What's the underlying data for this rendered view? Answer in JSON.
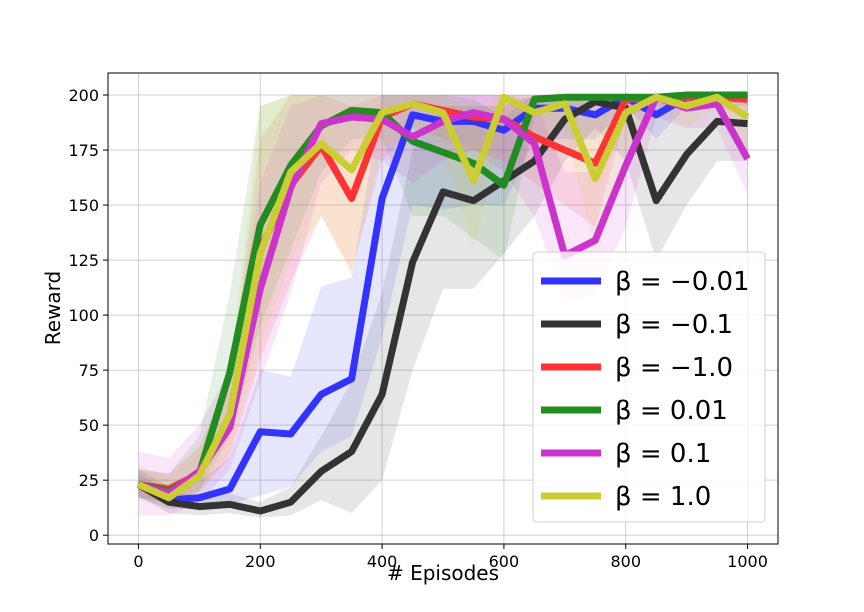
{
  "chart_data": {
    "type": "line",
    "title": "",
    "xlabel": "# Episodes",
    "ylabel": "Reward",
    "xlim": [
      -50,
      1050
    ],
    "ylim": [
      -4,
      210
    ],
    "grid": true,
    "legend_position": "lower-right",
    "x_ticks": [
      0,
      200,
      400,
      600,
      800,
      1000
    ],
    "y_ticks": [
      0,
      25,
      50,
      75,
      100,
      125,
      150,
      175,
      200
    ],
    "x": [
      0,
      50,
      100,
      150,
      200,
      250,
      300,
      350,
      400,
      450,
      500,
      550,
      600,
      650,
      700,
      750,
      800,
      850,
      900,
      950,
      1000
    ],
    "series": [
      {
        "name": "β = −0.01",
        "legend_text": "β = −0.01",
        "color": "#3333ff",
        "values": [
          23,
          16,
          17,
          21,
          47,
          46,
          64,
          71,
          153,
          191,
          188,
          188,
          184,
          194,
          194,
          191,
          199,
          191,
          199,
          199,
          199
        ],
        "lower": [
          17,
          12,
          12,
          14,
          18,
          22,
          38,
          45,
          90,
          150,
          148,
          150,
          150,
          180,
          180,
          180,
          195,
          180,
          195,
          195,
          195
        ],
        "upper": [
          30,
          22,
          25,
          35,
          75,
          72,
          113,
          117,
          200,
          200,
          200,
          200,
          200,
          200,
          200,
          200,
          200,
          200,
          200,
          200,
          200
        ]
      },
      {
        "name": "β = −0.1",
        "legend_text": "β = −0.1",
        "color": "#333333",
        "values": [
          23,
          15,
          13,
          14,
          11,
          15,
          29,
          38,
          64,
          124,
          156,
          152,
          161,
          170,
          189,
          197,
          194,
          152,
          173,
          188,
          187
        ],
        "lower": [
          18,
          10,
          9,
          10,
          8,
          9,
          16,
          10,
          25,
          75,
          112,
          112,
          128,
          145,
          170,
          185,
          170,
          125,
          150,
          170,
          170
        ],
        "upper": [
          28,
          20,
          18,
          19,
          15,
          22,
          45,
          70,
          110,
          175,
          195,
          195,
          195,
          200,
          200,
          200,
          200,
          195,
          200,
          200,
          200
        ]
      },
      {
        "name": "β = −1.0",
        "legend_text": "β = −1.0",
        "color": "#ff3333",
        "values": [
          23,
          21,
          28,
          51,
          130,
          159,
          177,
          153,
          190,
          196,
          193,
          190,
          189,
          181,
          175,
          169,
          198,
          199,
          199,
          199,
          198
        ],
        "lower": [
          17,
          15,
          20,
          35,
          80,
          115,
          145,
          120,
          170,
          185,
          180,
          175,
          170,
          160,
          150,
          140,
          190,
          195,
          195,
          195,
          190
        ],
        "upper": [
          30,
          28,
          40,
          70,
          180,
          200,
          200,
          195,
          200,
          200,
          200,
          200,
          200,
          200,
          200,
          195,
          200,
          200,
          200,
          200,
          200
        ]
      },
      {
        "name": "β = 0.01",
        "legend_text": "β = 0.01",
        "color": "#228b22",
        "values": [
          23,
          20,
          28,
          74,
          141,
          168,
          186,
          193,
          192,
          179,
          174,
          169,
          159,
          198,
          199,
          199,
          199,
          199,
          200,
          200,
          200
        ],
        "lower": [
          17,
          14,
          20,
          45,
          95,
          130,
          165,
          180,
          180,
          145,
          145,
          135,
          125,
          190,
          195,
          195,
          195,
          195,
          198,
          198,
          198
        ],
        "upper": [
          30,
          28,
          45,
          110,
          195,
          200,
          200,
          200,
          200,
          200,
          200,
          198,
          190,
          200,
          200,
          200,
          200,
          200,
          200,
          200,
          200
        ]
      },
      {
        "name": "β = 0.1",
        "legend_text": "β = 0.1",
        "color": "#cc33cc",
        "values": [
          23,
          19,
          29,
          49,
          112,
          158,
          187,
          190,
          189,
          181,
          188,
          192,
          189,
          178,
          127,
          134,
          168,
          199,
          194,
          196,
          171
        ],
        "lower": [
          9,
          9,
          15,
          30,
          70,
          110,
          160,
          175,
          170,
          160,
          170,
          175,
          165,
          145,
          105,
          110,
          140,
          190,
          185,
          185,
          155
        ],
        "upper": [
          38,
          35,
          50,
          75,
          160,
          195,
          200,
          200,
          200,
          200,
          200,
          200,
          200,
          198,
          165,
          165,
          195,
          200,
          200,
          200,
          190
        ]
      },
      {
        "name": "β = 1.0",
        "legend_text": "β = 1.0",
        "color": "#cccc33",
        "values": [
          23,
          17,
          27,
          55,
          128,
          165,
          178,
          166,
          192,
          196,
          192,
          161,
          199,
          192,
          196,
          162,
          192,
          199,
          195,
          199,
          190
        ],
        "lower": [
          16,
          12,
          18,
          38,
          85,
          125,
          145,
          118,
          175,
          185,
          175,
          130,
          190,
          175,
          185,
          130,
          175,
          195,
          185,
          195,
          175
        ],
        "upper": [
          32,
          25,
          40,
          75,
          195,
          200,
          200,
          200,
          200,
          200,
          200,
          190,
          200,
          200,
          200,
          190,
          200,
          200,
          200,
          200,
          200
        ]
      }
    ]
  }
}
